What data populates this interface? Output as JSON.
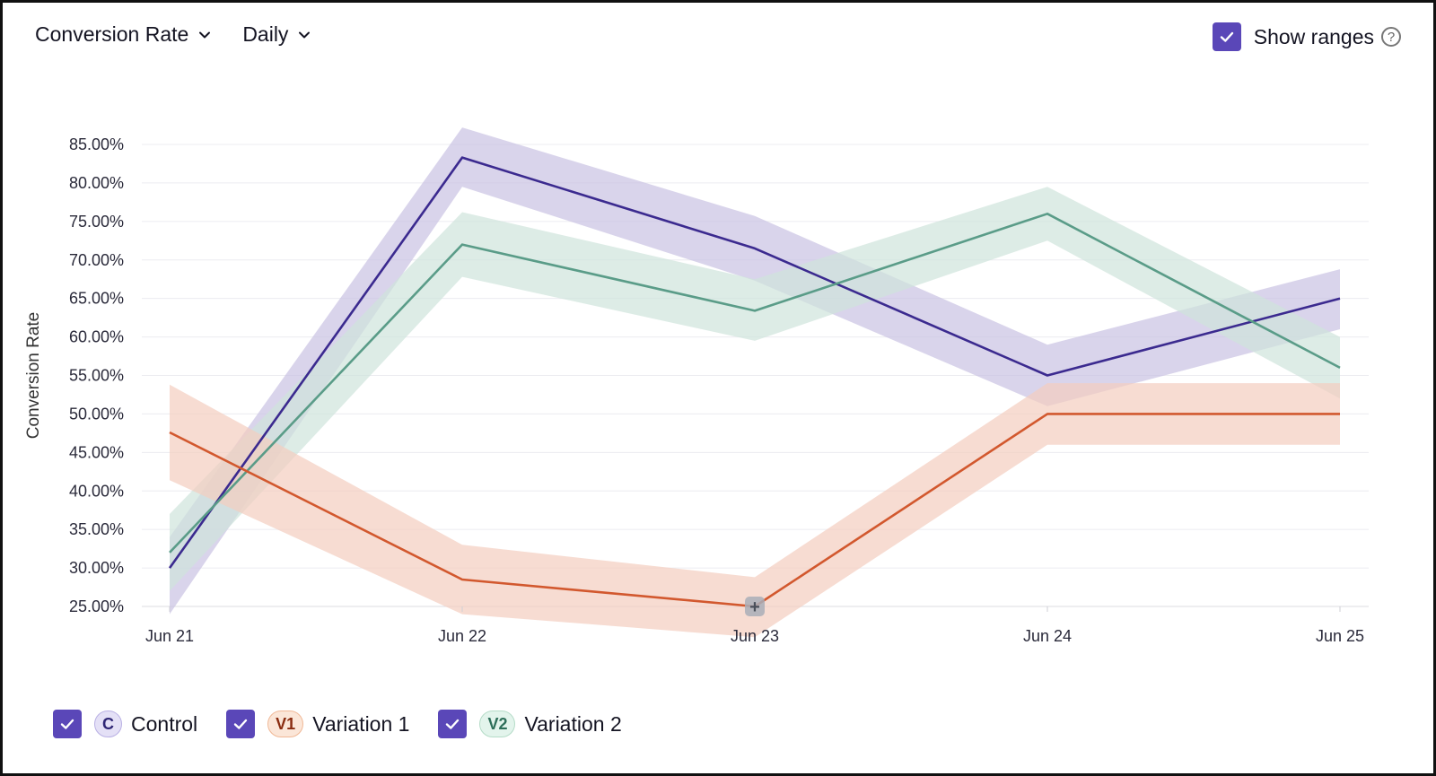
{
  "toolbar": {
    "metric_label": "Conversion Rate",
    "period_label": "Daily",
    "show_ranges_label": "Show ranges",
    "show_ranges_checked": true,
    "help_glyph": "?"
  },
  "colors": {
    "control": "#3b2a8f",
    "control_band": "#c9c2e3",
    "variation1": "#d2582e",
    "variation1_band": "#f3cdbf",
    "variation2": "#5a9c88",
    "variation2_band": "#cfe4dc",
    "checkbox": "#5a47b8",
    "grid": "#ececf0"
  },
  "legend": [
    {
      "badge": "C",
      "label": "Control",
      "checked": true,
      "badge_bg": "#e4e0f6",
      "badge_border": "#b9b0e4",
      "badge_color": "#2f2675"
    },
    {
      "badge": "V1",
      "label": "Variation 1",
      "checked": true,
      "badge_bg": "#fbe6d8",
      "badge_border": "#f0b896",
      "badge_color": "#8a2c10"
    },
    {
      "badge": "V2",
      "label": "Variation 2",
      "checked": true,
      "badge_bg": "#e3f4ec",
      "badge_border": "#b5dcc8",
      "badge_color": "#2e6f5a"
    }
  ],
  "chart_data": {
    "type": "line",
    "title": "",
    "xlabel": "",
    "ylabel": "Conversion Rate",
    "categories": [
      "Jun 21",
      "Jun 22",
      "Jun 23",
      "Jun 24",
      "Jun 25"
    ],
    "ylim": [
      25,
      85
    ],
    "yticks": [
      25,
      30,
      35,
      40,
      45,
      50,
      55,
      60,
      65,
      70,
      75,
      80,
      85
    ],
    "ytick_labels": [
      "25.00%",
      "30.00%",
      "35.00%",
      "40.00%",
      "45.00%",
      "50.00%",
      "55.00%",
      "60.00%",
      "65.00%",
      "70.00%",
      "75.00%",
      "80.00%",
      "85.00%"
    ],
    "grid": true,
    "series": [
      {
        "name": "Control",
        "key": "control",
        "values": [
          30.0,
          83.3,
          71.5,
          55.0,
          65.0
        ],
        "upper": [
          34.0,
          87.2,
          75.7,
          59.0,
          68.8
        ],
        "lower": [
          24.0,
          79.5,
          67.3,
          51.0,
          61.0
        ]
      },
      {
        "name": "Variation 2",
        "key": "variation2",
        "values": [
          32.0,
          72.0,
          63.4,
          76.0,
          56.0
        ],
        "upper": [
          37.0,
          76.2,
          67.5,
          79.5,
          60.0
        ],
        "lower": [
          27.0,
          67.8,
          59.5,
          72.5,
          52.0
        ]
      },
      {
        "name": "Variation 1",
        "key": "variation1",
        "values": [
          47.6,
          28.5,
          25.0,
          50.0,
          50.0
        ],
        "upper": [
          53.8,
          33.0,
          28.8,
          54.0,
          54.0
        ],
        "lower": [
          41.4,
          24.0,
          21.0,
          46.0,
          46.0
        ]
      }
    ],
    "marker": {
      "category_index": 2,
      "series": "Variation 1",
      "glyph": "+"
    }
  }
}
